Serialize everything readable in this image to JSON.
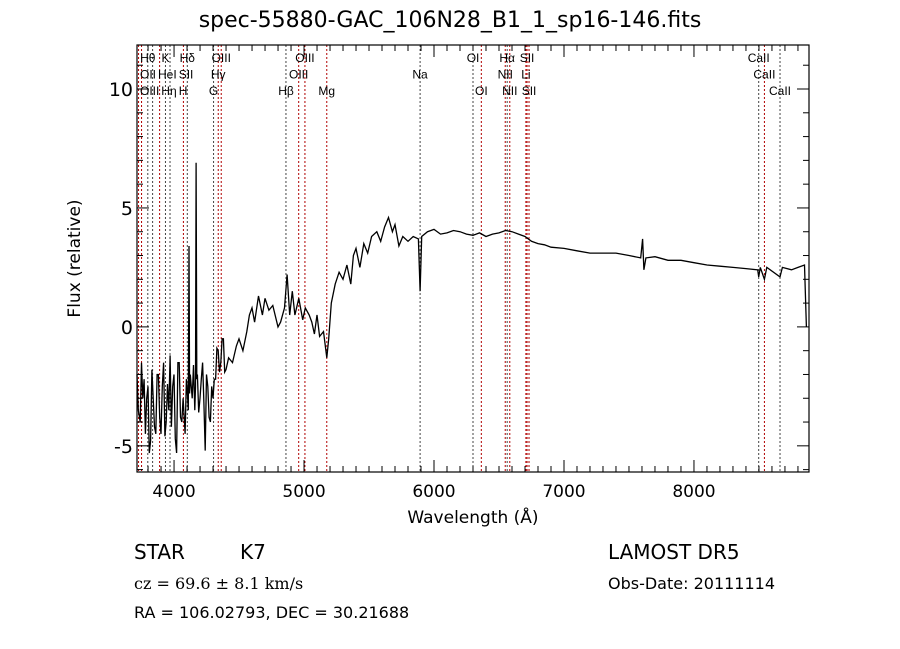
{
  "chart_data": {
    "type": "line",
    "title": "spec-55880-GAC_106N28_B1_1_sp16-146.fits",
    "xlabel": "Wavelength (Å)",
    "ylabel": "Flux (relative)",
    "xlim": [
      3715,
      8885
    ],
    "ylim": [
      -6.1,
      11.85
    ],
    "xticks": [
      4000,
      5000,
      6000,
      7000,
      8000
    ],
    "yticks": [
      -5,
      0,
      5,
      10
    ],
    "grid": false,
    "series": [
      {
        "name": "spectrum",
        "points": [
          [
            3715,
            -2
          ],
          [
            3725,
            -3.5
          ],
          [
            3740,
            -4
          ],
          [
            3750,
            -1.5
          ],
          [
            3760,
            -3
          ],
          [
            3770,
            -2.2
          ],
          [
            3780,
            -4.5
          ],
          [
            3790,
            -3
          ],
          [
            3800,
            -2.5
          ],
          [
            3810,
            -5.3
          ],
          [
            3820,
            -4.8
          ],
          [
            3830,
            -1.8
          ],
          [
            3840,
            -3
          ],
          [
            3850,
            -4.2
          ],
          [
            3860,
            -4.5
          ],
          [
            3870,
            -2
          ],
          [
            3880,
            -2
          ],
          [
            3890,
            -3.8
          ],
          [
            3900,
            -4.5
          ],
          [
            3910,
            -2.5
          ],
          [
            3920,
            -1.5
          ],
          [
            3930,
            -4.6
          ],
          [
            3940,
            -4
          ],
          [
            3950,
            -2.4
          ],
          [
            3960,
            -3.5
          ],
          [
            3970,
            -1.2
          ],
          [
            3980,
            -4.2
          ],
          [
            3990,
            -2.5
          ],
          [
            4000,
            -2
          ],
          [
            4010,
            -4.7
          ],
          [
            4020,
            -5.3
          ],
          [
            4030,
            -1.5
          ],
          [
            4040,
            -1.5
          ],
          [
            4050,
            -3.8
          ],
          [
            4060,
            -4
          ],
          [
            4070,
            -3
          ],
          [
            4085,
            -4.5
          ],
          [
            4095,
            -2.2
          ],
          [
            4100,
            -2.5
          ],
          [
            4110,
            -3.5
          ],
          [
            4115,
            3.4
          ],
          [
            4120,
            -2.8
          ],
          [
            4125,
            -2
          ],
          [
            4140,
            -3
          ],
          [
            4150,
            -1.6
          ],
          [
            4160,
            -3.5
          ],
          [
            4165,
            -2.5
          ],
          [
            4170,
            6.9
          ],
          [
            4175,
            -2.2
          ],
          [
            4180,
            -2
          ],
          [
            4190,
            -3.6
          ],
          [
            4200,
            -3
          ],
          [
            4210,
            -2.2
          ],
          [
            4220,
            -1.5
          ],
          [
            4230,
            -3.2
          ],
          [
            4240,
            -5.2
          ],
          [
            4250,
            -2
          ],
          [
            4260,
            -2.5
          ],
          [
            4270,
            -3.8
          ],
          [
            4280,
            -4
          ],
          [
            4290,
            -2.5
          ],
          [
            4300,
            -3
          ],
          [
            4310,
            -2.2
          ],
          [
            4320,
            -2.2
          ],
          [
            4330,
            -0.9
          ],
          [
            4340,
            -1
          ],
          [
            4350,
            -1.9
          ],
          [
            4360,
            -1.5
          ],
          [
            4370,
            -0.5
          ],
          [
            4380,
            -0.5
          ],
          [
            4390,
            -1.9
          ],
          [
            4400,
            -1.8
          ],
          [
            4420,
            -1.3
          ],
          [
            4450,
            -1.5
          ],
          [
            4480,
            -0.8
          ],
          [
            4500,
            -0.5
          ],
          [
            4530,
            -1
          ],
          [
            4560,
            -0.2
          ],
          [
            4580,
            0.5
          ],
          [
            4600,
            0.8
          ],
          [
            4620,
            0.2
          ],
          [
            4650,
            1.3
          ],
          [
            4680,
            0.5
          ],
          [
            4700,
            1.2
          ],
          [
            4730,
            0.7
          ],
          [
            4760,
            0.9
          ],
          [
            4800,
            0
          ],
          [
            4820,
            0.2
          ],
          [
            4850,
            0.8
          ],
          [
            4870,
            2.2
          ],
          [
            4890,
            0.5
          ],
          [
            4910,
            1.5
          ],
          [
            4930,
            0.5
          ],
          [
            4960,
            1.2
          ],
          [
            4990,
            0.3
          ],
          [
            5010,
            0.8
          ],
          [
            5040,
            0.5
          ],
          [
            5060,
            0.2
          ],
          [
            5080,
            -0.3
          ],
          [
            5100,
            0.5
          ],
          [
            5120,
            -0.4
          ],
          [
            5150,
            -0.2
          ],
          [
            5175,
            -1.3
          ],
          [
            5190,
            -0.5
          ],
          [
            5210,
            1
          ],
          [
            5240,
            1.8
          ],
          [
            5270,
            2.3
          ],
          [
            5300,
            2
          ],
          [
            5330,
            2.6
          ],
          [
            5360,
            1.8
          ],
          [
            5380,
            3
          ],
          [
            5400,
            3.3
          ],
          [
            5430,
            2.5
          ],
          [
            5460,
            3.5
          ],
          [
            5490,
            3.1
          ],
          [
            5520,
            3.8
          ],
          [
            5560,
            4
          ],
          [
            5590,
            3.6
          ],
          [
            5620,
            4.2
          ],
          [
            5650,
            4.6
          ],
          [
            5680,
            4.0
          ],
          [
            5700,
            4.3
          ],
          [
            5730,
            3.4
          ],
          [
            5760,
            3.8
          ],
          [
            5800,
            3.6
          ],
          [
            5840,
            3.8
          ],
          [
            5880,
            3.7
          ],
          [
            5893,
            1.5
          ],
          [
            5905,
            3.8
          ],
          [
            5950,
            4.0
          ],
          [
            6000,
            4.1
          ],
          [
            6050,
            3.9
          ],
          [
            6100,
            3.95
          ],
          [
            6150,
            4.05
          ],
          [
            6200,
            4.0
          ],
          [
            6250,
            3.9
          ],
          [
            6300,
            3.85
          ],
          [
            6350,
            3.95
          ],
          [
            6400,
            3.8
          ],
          [
            6450,
            3.9
          ],
          [
            6500,
            3.95
          ],
          [
            6550,
            4.05
          ],
          [
            6600,
            4.0
          ],
          [
            6650,
            3.9
          ],
          [
            6700,
            3.8
          ],
          [
            6750,
            3.6
          ],
          [
            6800,
            3.5
          ],
          [
            6850,
            3.45
          ],
          [
            6900,
            3.35
          ],
          [
            7000,
            3.3
          ],
          [
            7100,
            3.2
          ],
          [
            7200,
            3.1
          ],
          [
            7300,
            3.1
          ],
          [
            7400,
            3.1
          ],
          [
            7500,
            3.0
          ],
          [
            7590,
            2.9
          ],
          [
            7605,
            3.7
          ],
          [
            7615,
            2.4
          ],
          [
            7630,
            2.9
          ],
          [
            7700,
            2.95
          ],
          [
            7800,
            2.8
          ],
          [
            7900,
            2.8
          ],
          [
            8000,
            2.7
          ],
          [
            8100,
            2.6
          ],
          [
            8200,
            2.55
          ],
          [
            8300,
            2.5
          ],
          [
            8400,
            2.45
          ],
          [
            8490,
            2.4
          ],
          [
            8498,
            2.1
          ],
          [
            8510,
            2.5
          ],
          [
            8542,
            2.0
          ],
          [
            8560,
            2.5
          ],
          [
            8662,
            2.1
          ],
          [
            8680,
            2.5
          ],
          [
            8750,
            2.4
          ],
          [
            8800,
            2.5
          ],
          [
            8850,
            2.6
          ],
          [
            8865,
            0.0
          ]
        ]
      }
    ],
    "line_markers": [
      {
        "wave": 3727,
        "label": "OII",
        "row": 1,
        "color": "#b00000"
      },
      {
        "wave": 3750,
        "label": "OIII",
        "row": 2,
        "color": "#b00000"
      },
      {
        "wave": 3798,
        "label": "Hθ",
        "row": 0,
        "color": "#444444"
      },
      {
        "wave": 3835,
        "label": "Hη",
        "row": 2,
        "color": "#444444"
      },
      {
        "wave": 3889,
        "label": "HeI",
        "row": 1,
        "color": "#b00000"
      },
      {
        "wave": 3934,
        "label": "K",
        "row": 0,
        "color": "#444444"
      },
      {
        "wave": 3969,
        "label": "H",
        "row": 2,
        "color": "#444444"
      },
      {
        "wave": 4072,
        "label": "SII",
        "row": 1,
        "color": "#b00000"
      },
      {
        "wave": 4102,
        "label": "Hδ",
        "row": 0,
        "color": "#444444"
      },
      {
        "wave": 4304,
        "label": "G",
        "row": 2,
        "color": "#444444"
      },
      {
        "wave": 4340,
        "label": "Hγ",
        "row": 1,
        "color": "#b00000"
      },
      {
        "wave": 4363,
        "label": "OIII",
        "row": 0,
        "color": "#b00000"
      },
      {
        "wave": 4861,
        "label": "Hβ",
        "row": 2,
        "color": "#444444"
      },
      {
        "wave": 4959,
        "label": "OIII",
        "row": 1,
        "color": "#b00000"
      },
      {
        "wave": 5007,
        "label": "OIII",
        "row": 0,
        "color": "#b00000"
      },
      {
        "wave": 5175,
        "label": "Mg",
        "row": 2,
        "color": "#b00000"
      },
      {
        "wave": 5893,
        "label": "Na",
        "row": 1,
        "color": "#444444"
      },
      {
        "wave": 6300,
        "label": "OI",
        "row": 0,
        "color": "#444444"
      },
      {
        "wave": 6364,
        "label": "OI",
        "row": 2,
        "color": "#b00000"
      },
      {
        "wave": 6548,
        "label": "NII",
        "row": 1,
        "color": "#b00000"
      },
      {
        "wave": 6563,
        "label": "Hα",
        "row": 0,
        "color": "#444444"
      },
      {
        "wave": 6583,
        "label": "NII",
        "row": 2,
        "color": "#b00000"
      },
      {
        "wave": 6707,
        "label": "Li",
        "row": 1,
        "color": "#b00000"
      },
      {
        "wave": 6716,
        "label": "SII",
        "row": 0,
        "color": "#b00000"
      },
      {
        "wave": 6731,
        "label": "SII",
        "row": 2,
        "color": "#b00000"
      },
      {
        "wave": 8498,
        "label": "CaII",
        "row": 0,
        "color": "#444444"
      },
      {
        "wave": 8542,
        "label": "CaII",
        "row": 1,
        "color": "#b00000"
      },
      {
        "wave": 8662,
        "label": "CaII",
        "row": 2,
        "color": "#444444"
      }
    ]
  },
  "info": {
    "object_class": "STAR",
    "subclass": "K7",
    "survey": "LAMOST DR5",
    "redshift": "cz = 69.6 ± 8.1 km/s",
    "obs_date": "Obs-Date: 20111114",
    "coords": "RA = 106.02793, DEC =  30.21688"
  }
}
